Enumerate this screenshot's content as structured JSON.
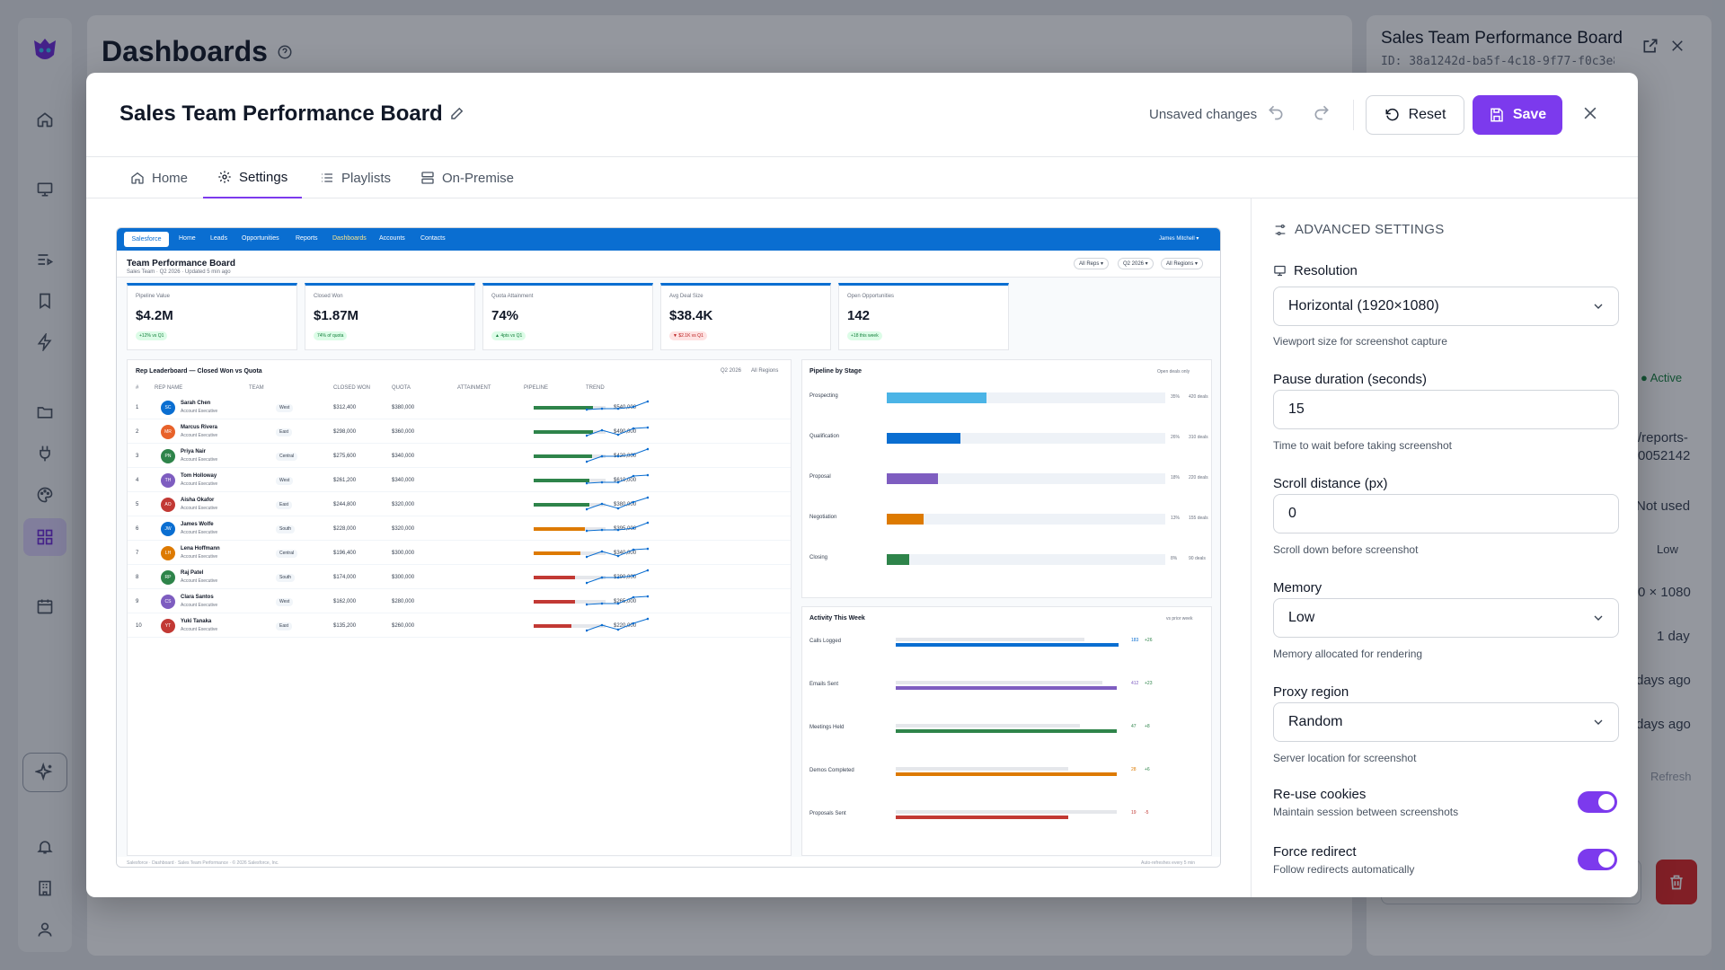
{
  "background": {
    "page_title": "Dashboards",
    "side_panel": {
      "title": "Sales Team Performance Board",
      "id": "ID: 38a1242d-ba5f-4c18-9f77-f0c3e83…",
      "status": "Active",
      "path": "/reports-",
      "path2": "0052142",
      "cookies": "Not used",
      "memory": "Low",
      "resolution": "0 × 1080",
      "interval": "1 day",
      "ago1": "days ago",
      "ago2": "days ago",
      "refresh": "Refresh"
    }
  },
  "modal": {
    "title": "Sales Team Performance Board",
    "unsaved": "Unsaved changes",
    "reset_label": "Reset",
    "save_label": "Save",
    "tabs": [
      {
        "label": "Home"
      },
      {
        "label": "Settings"
      },
      {
        "label": "Playlists"
      },
      {
        "label": "On-Premise"
      }
    ],
    "active_tab": "Settings"
  },
  "preview": {
    "nav": {
      "logo": "Salesforce",
      "items": [
        "Home",
        "Leads",
        "Opportunities",
        "Reports",
        "Dashboards",
        "Accounts",
        "Contacts"
      ],
      "user": "James Mitchell ▾"
    },
    "header": {
      "title": "Team Performance Board",
      "subtitle": "Sales Team · Q2 2026 · Updated 5 min ago",
      "filters": [
        "All Reps ▾",
        "Q2 2026 ▾",
        "All Regions ▾"
      ]
    },
    "kpis": [
      {
        "label": "Pipeline Value",
        "value": "$4.2M",
        "change": "+12% vs Q1",
        "dir": "up"
      },
      {
        "label": "Closed Won",
        "value": "$1.87M",
        "change": "74% of quota",
        "dir": "up"
      },
      {
        "label": "Quota Attainment",
        "value": "74%",
        "change": "▲ 4pts vs Q1",
        "dir": "up"
      },
      {
        "label": "Avg Deal Size",
        "value": "$38.4K",
        "change": "▼ $2.1K vs Q1",
        "dir": "down"
      },
      {
        "label": "Open Opportunities",
        "value": "142",
        "change": "+18 this week",
        "dir": "up"
      }
    ],
    "leaderboard": {
      "title": "Rep Leaderboard — Closed Won vs Quota",
      "filter1": "Q2 2026",
      "filter2": "All Regions",
      "columns": [
        "#",
        "REP NAME",
        "TEAM",
        "CLOSED WON",
        "QUOTA",
        "ATTAINMENT",
        "PIPELINE",
        "TREND"
      ],
      "rows": [
        {
          "rank": "1",
          "initials": "SC",
          "name": "Sarah Chen",
          "role": "Account Executive",
          "team": "West",
          "won": "$312,400",
          "quota": "$380,000",
          "pipeline": "$540,000",
          "att": 0.82,
          "color": "#2e844a",
          "avatar": "#0a6ed1"
        },
        {
          "rank": "2",
          "initials": "MR",
          "name": "Marcus Rivera",
          "role": "Account Executive",
          "team": "East",
          "won": "$298,000",
          "quota": "$360,000",
          "pipeline": "$490,000",
          "att": 0.83,
          "color": "#2e844a",
          "avatar": "#e8622a"
        },
        {
          "rank": "3",
          "initials": "PN",
          "name": "Priya Nair",
          "role": "Account Executive",
          "team": "Central",
          "won": "$275,600",
          "quota": "$340,000",
          "pipeline": "$420,000",
          "att": 0.81,
          "color": "#2e844a",
          "avatar": "#2e844a"
        },
        {
          "rank": "4",
          "initials": "TH",
          "name": "Tom Holloway",
          "role": "Account Executive",
          "team": "West",
          "won": "$261,200",
          "quota": "$340,000",
          "pipeline": "$610,000",
          "att": 0.77,
          "color": "#2e844a",
          "avatar": "#7e5dc0"
        },
        {
          "rank": "5",
          "initials": "AO",
          "name": "Aisha Okafor",
          "role": "Account Executive",
          "team": "East",
          "won": "$244,800",
          "quota": "$320,000",
          "pipeline": "$380,000",
          "att": 0.77,
          "color": "#2e844a",
          "avatar": "#c23934"
        },
        {
          "rank": "6",
          "initials": "JW",
          "name": "James Wolfe",
          "role": "Account Executive",
          "team": "South",
          "won": "$228,000",
          "quota": "$320,000",
          "pipeline": "$395,000",
          "att": 0.71,
          "color": "#dd7a01",
          "avatar": "#0a6ed1"
        },
        {
          "rank": "7",
          "initials": "LH",
          "name": "Lena Hoffmann",
          "role": "Account Executive",
          "team": "Central",
          "won": "$196,400",
          "quota": "$300,000",
          "pipeline": "$340,000",
          "att": 0.65,
          "color": "#dd7a01",
          "avatar": "#dd7a01"
        },
        {
          "rank": "8",
          "initials": "RP",
          "name": "Raj Patel",
          "role": "Account Executive",
          "team": "South",
          "won": "$174,000",
          "quota": "$300,000",
          "pipeline": "$290,000",
          "att": 0.58,
          "color": "#c23934",
          "avatar": "#2e844a"
        },
        {
          "rank": "9",
          "initials": "CS",
          "name": "Clara Santos",
          "role": "Account Executive",
          "team": "West",
          "won": "$162,000",
          "quota": "$280,000",
          "pipeline": "$265,000",
          "att": 0.58,
          "color": "#c23934",
          "avatar": "#7e5dc0"
        },
        {
          "rank": "10",
          "initials": "YT",
          "name": "Yuki Tanaka",
          "role": "Account Executive",
          "team": "East",
          "won": "$135,200",
          "quota": "$260,000",
          "pipeline": "$220,000",
          "att": 0.52,
          "color": "#c23934",
          "avatar": "#c23934"
        }
      ]
    },
    "pipeline": {
      "title": "Pipeline by Stage",
      "filter": "Open deals only",
      "stages": [
        {
          "name": "Prospecting",
          "pct": 0.35,
          "pct_label": "35%",
          "deals": "420 deals",
          "color": "#4bb4e6"
        },
        {
          "name": "Qualification",
          "pct": 0.26,
          "pct_label": "26%",
          "deals": "310 deals",
          "color": "#0a6ed1"
        },
        {
          "name": "Proposal",
          "pct": 0.18,
          "pct_label": "18%",
          "deals": "220 deals",
          "color": "#7e5dc0"
        },
        {
          "name": "Negotiation",
          "pct": 0.13,
          "pct_label": "13%",
          "deals": "155 deals",
          "color": "#dd7a01"
        },
        {
          "name": "Closing",
          "pct": 0.08,
          "pct_label": "8%",
          "deals": "90 deals",
          "color": "#2e844a"
        }
      ]
    },
    "activity": {
      "title": "Activity This Week",
      "filter": "vs prior week",
      "items": [
        {
          "name": "Calls Logged",
          "value": "183",
          "delta": "+26",
          "now": 0.97,
          "prior": 0.82,
          "color": "#0a6ed1",
          "dcolor": "#2e844a"
        },
        {
          "name": "Emails Sent",
          "value": "412",
          "delta": "+23",
          "now": 0.96,
          "prior": 0.9,
          "color": "#7e5dc0",
          "dcolor": "#2e844a"
        },
        {
          "name": "Meetings Held",
          "value": "47",
          "delta": "+8",
          "now": 0.96,
          "prior": 0.8,
          "color": "#2e844a",
          "dcolor": "#2e844a"
        },
        {
          "name": "Demos Completed",
          "value": "28",
          "delta": "+6",
          "now": 0.96,
          "prior": 0.75,
          "color": "#dd7a01",
          "dcolor": "#2e844a"
        },
        {
          "name": "Proposals Sent",
          "value": "19",
          "delta": "-5",
          "now": 0.75,
          "prior": 0.96,
          "color": "#c23934",
          "dcolor": "#c23934"
        }
      ]
    },
    "footer": {
      "left": "Salesforce · Dashboard · Sales Team Performance · © 2026 Salesforce, Inc.",
      "right": "Auto-refreshes every 5 min"
    }
  },
  "settings": {
    "heading": "ADVANCED SETTINGS",
    "resolution": {
      "label": "Resolution",
      "value": "Horizontal (1920×1080)",
      "help": "Viewport size for screenshot capture"
    },
    "pause": {
      "label": "Pause duration (seconds)",
      "value": "15",
      "help": "Time to wait before taking screenshot"
    },
    "scroll": {
      "label": "Scroll distance (px)",
      "value": "0",
      "help": "Scroll down before screenshot"
    },
    "memory": {
      "label": "Memory",
      "value": "Low",
      "help": "Memory allocated for rendering"
    },
    "proxy": {
      "label": "Proxy region",
      "value": "Random",
      "help": "Server location for screenshot"
    },
    "cookies": {
      "label": "Re-use cookies",
      "help": "Maintain session between screenshots",
      "on": true
    },
    "redirect": {
      "label": "Force redirect",
      "help": "Follow redirects automatically",
      "on": true
    }
  }
}
